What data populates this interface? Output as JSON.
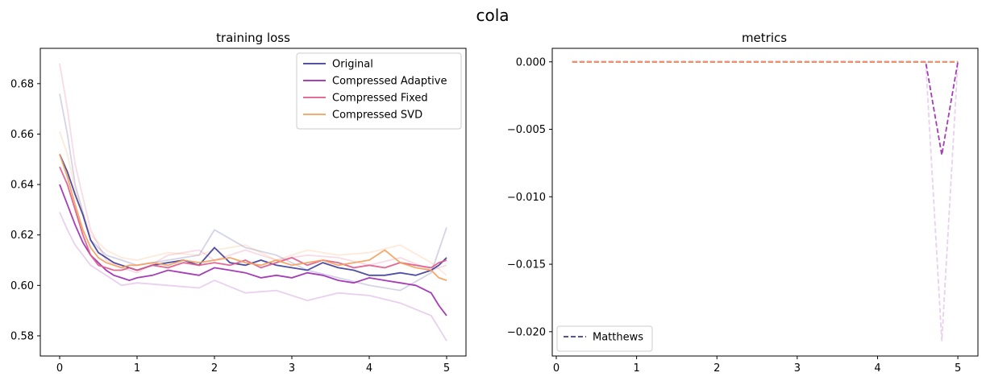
{
  "figure": {
    "suptitle": "cola"
  },
  "chart_data": [
    {
      "type": "line",
      "title": "training loss",
      "xlabel": "",
      "ylabel": "",
      "xlim": [
        -0.25,
        5.25
      ],
      "ylim": [
        0.572,
        0.694
      ],
      "xticks": [
        0,
        1,
        2,
        3,
        4,
        5
      ],
      "yticks": [
        0.58,
        0.6,
        0.62,
        0.64,
        0.66,
        0.68
      ],
      "legend_position": "top-right",
      "series": [
        {
          "name": "Original",
          "color": "#3b3a98",
          "x": [
            0,
            0.1,
            0.2,
            0.3,
            0.4,
            0.5,
            0.6,
            0.7,
            0.8,
            0.9,
            1.0,
            1.2,
            1.4,
            1.6,
            1.8,
            2.0,
            2.2,
            2.4,
            2.6,
            2.8,
            3.0,
            3.2,
            3.4,
            3.6,
            3.8,
            4.0,
            4.2,
            4.4,
            4.6,
            4.8,
            4.9,
            5.0
          ],
          "y": [
            0.652,
            0.645,
            0.636,
            0.628,
            0.618,
            0.613,
            0.611,
            0.609,
            0.608,
            0.607,
            0.606,
            0.608,
            0.609,
            0.61,
            0.608,
            0.615,
            0.609,
            0.608,
            0.61,
            0.608,
            0.607,
            0.606,
            0.609,
            0.607,
            0.606,
            0.604,
            0.604,
            0.605,
            0.604,
            0.606,
            0.608,
            0.611
          ]
        },
        {
          "name": "Compressed Adaptive",
          "color": "#9c27b0",
          "x": [
            0,
            0.1,
            0.2,
            0.3,
            0.4,
            0.5,
            0.6,
            0.7,
            0.8,
            0.9,
            1.0,
            1.2,
            1.4,
            1.6,
            1.8,
            2.0,
            2.2,
            2.4,
            2.6,
            2.8,
            3.0,
            3.2,
            3.4,
            3.6,
            3.8,
            4.0,
            4.2,
            4.4,
            4.6,
            4.8,
            4.9,
            5.0
          ],
          "y": [
            0.64,
            0.632,
            0.624,
            0.617,
            0.612,
            0.609,
            0.606,
            0.604,
            0.603,
            0.602,
            0.603,
            0.604,
            0.606,
            0.605,
            0.604,
            0.607,
            0.606,
            0.605,
            0.603,
            0.604,
            0.603,
            0.605,
            0.604,
            0.602,
            0.601,
            0.603,
            0.602,
            0.601,
            0.6,
            0.597,
            0.592,
            0.588
          ]
        },
        {
          "name": "Compressed Fixed",
          "color": "#e05a8a",
          "x": [
            0,
            0.1,
            0.2,
            0.3,
            0.4,
            0.5,
            0.6,
            0.7,
            0.8,
            0.9,
            1.0,
            1.2,
            1.4,
            1.6,
            1.8,
            2.0,
            2.2,
            2.4,
            2.6,
            2.8,
            3.0,
            3.2,
            3.4,
            3.6,
            3.8,
            4.0,
            4.2,
            4.4,
            4.6,
            4.8,
            4.9,
            5.0
          ],
          "y": [
            0.647,
            0.64,
            0.63,
            0.62,
            0.612,
            0.608,
            0.607,
            0.606,
            0.606,
            0.607,
            0.606,
            0.608,
            0.607,
            0.609,
            0.608,
            0.609,
            0.608,
            0.61,
            0.607,
            0.609,
            0.611,
            0.608,
            0.61,
            0.609,
            0.607,
            0.608,
            0.607,
            0.609,
            0.608,
            0.607,
            0.609,
            0.61
          ]
        },
        {
          "name": "Compressed SVD",
          "color": "#f4a05a",
          "x": [
            0,
            0.1,
            0.2,
            0.3,
            0.4,
            0.5,
            0.6,
            0.7,
            0.8,
            0.9,
            1.0,
            1.2,
            1.4,
            1.6,
            1.8,
            2.0,
            2.2,
            2.4,
            2.6,
            2.8,
            3.0,
            3.2,
            3.4,
            3.6,
            3.8,
            4.0,
            4.2,
            4.4,
            4.6,
            4.8,
            4.9,
            5.0
          ],
          "y": [
            0.652,
            0.643,
            0.632,
            0.622,
            0.615,
            0.611,
            0.609,
            0.608,
            0.607,
            0.608,
            0.608,
            0.609,
            0.608,
            0.61,
            0.609,
            0.61,
            0.611,
            0.609,
            0.608,
            0.61,
            0.608,
            0.609,
            0.61,
            0.608,
            0.609,
            0.61,
            0.614,
            0.609,
            0.607,
            0.606,
            0.603,
            0.602
          ]
        }
      ],
      "shadow_series": [
        {
          "color": "#3b3a98",
          "x": [
            0,
            0.1,
            0.2,
            0.4,
            0.6,
            0.8,
            1.0,
            1.4,
            1.8,
            2.0,
            2.4,
            2.8,
            3.2,
            3.6,
            4.0,
            4.4,
            4.8,
            5.0
          ],
          "y": [
            0.676,
            0.66,
            0.64,
            0.618,
            0.612,
            0.61,
            0.608,
            0.61,
            0.612,
            0.622,
            0.615,
            0.612,
            0.606,
            0.603,
            0.6,
            0.598,
            0.605,
            0.623
          ]
        },
        {
          "color": "#9c27b0",
          "x": [
            0,
            0.1,
            0.2,
            0.4,
            0.6,
            0.8,
            1.0,
            1.4,
            1.8,
            2.0,
            2.4,
            2.8,
            3.2,
            3.6,
            4.0,
            4.4,
            4.8,
            5.0
          ],
          "y": [
            0.629,
            0.622,
            0.616,
            0.608,
            0.604,
            0.6,
            0.601,
            0.6,
            0.599,
            0.602,
            0.597,
            0.598,
            0.594,
            0.597,
            0.596,
            0.593,
            0.588,
            0.578
          ]
        },
        {
          "color": "#e05a8a",
          "x": [
            0,
            0.1,
            0.2,
            0.4,
            0.6,
            0.8,
            1.0,
            1.4,
            1.8,
            2.0,
            2.4,
            2.8,
            3.2,
            3.6,
            4.0,
            4.4,
            4.8,
            5.0
          ],
          "y": [
            0.688,
            0.67,
            0.648,
            0.622,
            0.61,
            0.607,
            0.605,
            0.612,
            0.614,
            0.61,
            0.614,
            0.61,
            0.612,
            0.611,
            0.608,
            0.611,
            0.606,
            0.608
          ]
        },
        {
          "color": "#f4a05a",
          "x": [
            0,
            0.1,
            0.2,
            0.4,
            0.6,
            0.8,
            1.0,
            1.4,
            1.8,
            2.0,
            2.4,
            2.8,
            3.2,
            3.6,
            4.0,
            4.4,
            4.8,
            5.0
          ],
          "y": [
            0.661,
            0.652,
            0.638,
            0.62,
            0.614,
            0.611,
            0.61,
            0.613,
            0.612,
            0.614,
            0.616,
            0.61,
            0.614,
            0.612,
            0.613,
            0.616,
            0.609,
            0.604
          ]
        }
      ]
    },
    {
      "type": "line",
      "title": "metrics",
      "xlabel": "",
      "ylabel": "",
      "xlim": [
        -0.05,
        5.25
      ],
      "ylim": [
        -0.0218,
        0.001
      ],
      "xticks": [
        0,
        1,
        2,
        3,
        4,
        5
      ],
      "yticks": [
        0.0,
        -0.005,
        -0.01,
        -0.015,
        -0.02
      ],
      "ytick_labels": [
        "0.000",
        "−0.005",
        "−0.010",
        "−0.015",
        "−0.020"
      ],
      "legend_position": "bottom-left",
      "series": [
        {
          "name": "Matthews",
          "color": "#3b3a98",
          "dash": true,
          "x": [
            0.2,
            1,
            2,
            3,
            4,
            4.6,
            5.0
          ],
          "y": [
            0,
            0,
            0,
            0,
            0,
            0,
            0
          ]
        },
        {
          "color": "#9c27b0",
          "dash": true,
          "x": [
            0.2,
            1,
            2,
            3,
            4,
            4.6,
            4.8,
            5.0
          ],
          "y": [
            0,
            0,
            0,
            0,
            0,
            0,
            -0.0069,
            0
          ]
        },
        {
          "color": "#e05a8a",
          "dash": true,
          "x": [
            0.2,
            1,
            2,
            3,
            4,
            5.0
          ],
          "y": [
            0,
            0,
            0,
            0,
            0,
            0
          ]
        },
        {
          "color": "#f4a05a",
          "dash": true,
          "x": [
            0.2,
            1,
            2,
            3,
            4,
            5.0
          ],
          "y": [
            0,
            0,
            0,
            0,
            0,
            0
          ]
        }
      ],
      "shadow_series": [
        {
          "color": "#9c27b0",
          "x": [
            4.6,
            4.8,
            5.0
          ],
          "y": [
            0,
            -0.0207,
            0
          ]
        }
      ]
    }
  ]
}
